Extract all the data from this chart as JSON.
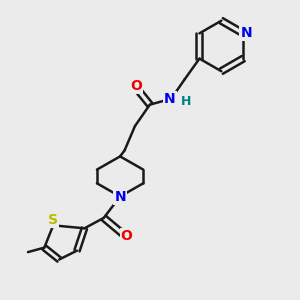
{
  "bg_color": "#ebebeb",
  "bond_color": "#1a1a1a",
  "bond_width": 1.8,
  "N_color": "#0000ee",
  "O_color": "#ee0000",
  "S_color": "#bbbb00",
  "H_color": "#008080",
  "figsize": [
    3.0,
    3.0
  ],
  "dpi": 100,
  "xlim": [
    0,
    10
  ],
  "ylim": [
    0,
    10
  ]
}
